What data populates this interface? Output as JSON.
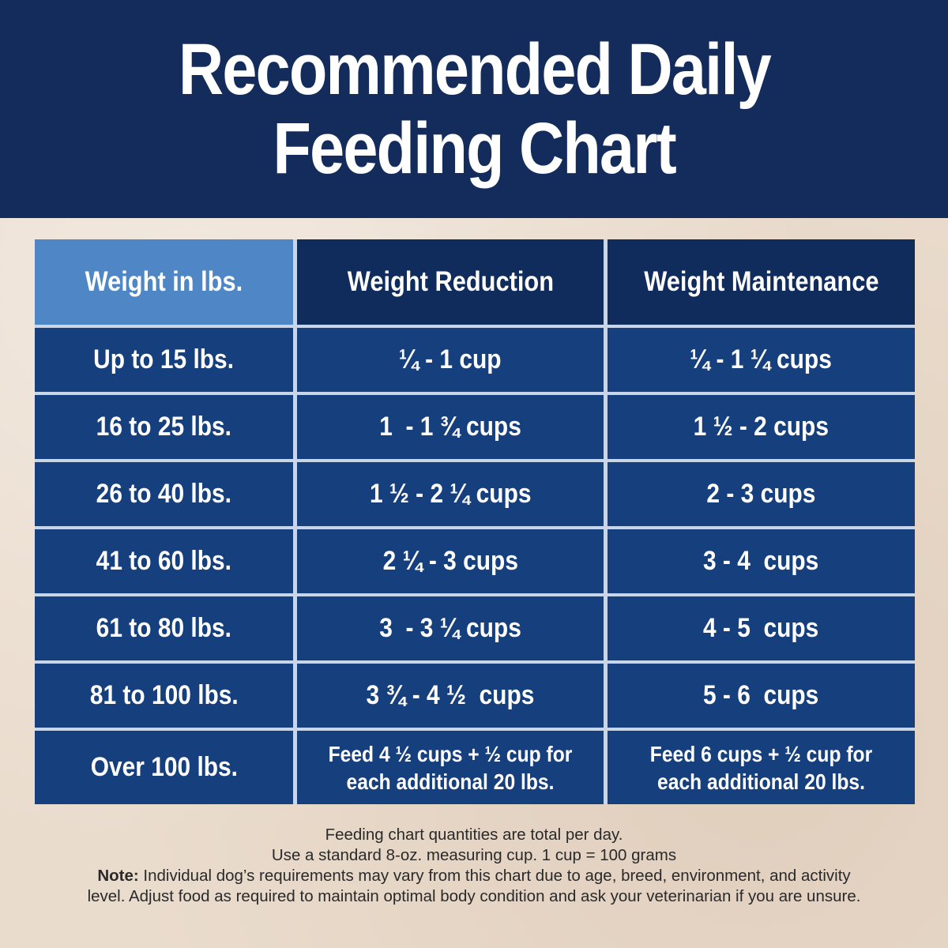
{
  "title": {
    "line1": "Recommended Daily",
    "line2": "Feeding Chart"
  },
  "table": {
    "headers": [
      "Weight in lbs.",
      "Weight Reduction",
      "Weight Maintenance"
    ],
    "rows": [
      [
        "Up to 15 lbs.",
        "¼ - 1 cup",
        "¼ - 1 ¼ cups"
      ],
      [
        "16 to 25 lbs.",
        "1  - 1 ¾ cups",
        "1 ½ - 2 cups"
      ],
      [
        "26 to 40 lbs.",
        "1 ½ - 2 ¼ cups",
        "2 - 3 cups"
      ],
      [
        "41 to 60 lbs.",
        "2 ¼ - 3 cups",
        "3 - 4  cups"
      ],
      [
        "61 to 80 lbs.",
        "3  - 3 ¼ cups",
        "4 - 5  cups"
      ],
      [
        "81 to 100 lbs.",
        "3 ¾ - 4 ½  cups",
        "5 - 6  cups"
      ],
      [
        "Over 100 lbs.",
        "Feed 4 ½ cups + ½ cup for each additional 20 lbs.",
        "Feed 6 cups + ½ cup for each additional 20 lbs."
      ]
    ]
  },
  "footer": {
    "line1": "Feeding chart quantities are total per day.",
    "line2": "Use a standard 8-oz. measuring cup. 1 cup = 100 grams",
    "note_label": "Note:",
    "note_text": " Individual dog’s requirements may vary from this chart due to age, breed, environment, and activity level. Adjust food as required to maintain optimal body condition and ask your veterinarian if you are unsure."
  },
  "colors": {
    "header_bg": "#142c5c",
    "table_cell": "#163f7d",
    "table_header": "#0f2c5c",
    "first_header": "#4f86c5",
    "background": "#eadccd"
  }
}
